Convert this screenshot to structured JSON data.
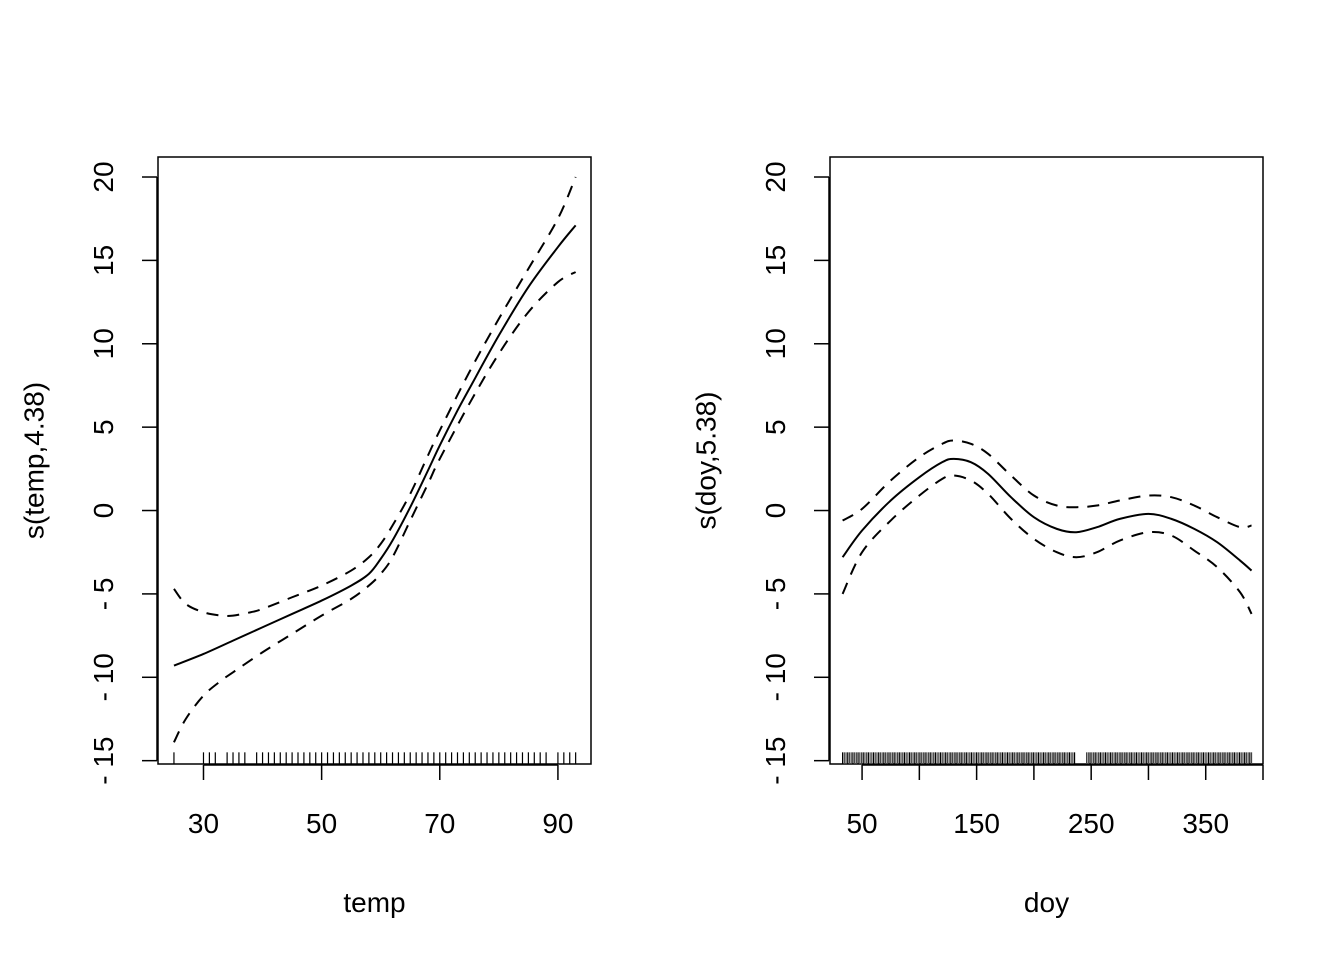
{
  "chart_data": [
    {
      "type": "line",
      "xlabel": "temp",
      "ylabel": "s(temp,4.38)",
      "xlim": [
        22.3,
        95.6
      ],
      "ylim": [
        -15.2,
        21.2
      ],
      "xticks": [
        30,
        50,
        70,
        90
      ],
      "yticks": [
        -15,
        -10,
        -5,
        0,
        5,
        10,
        15,
        20
      ],
      "grid": false,
      "series": [
        {
          "role": "fit",
          "style": "solid",
          "x": [
            25,
            30,
            35,
            40,
            45,
            50,
            55,
            58,
            60,
            62,
            65,
            68,
            70,
            73,
            75,
            80,
            85,
            90,
            93
          ],
          "values": [
            -9.3,
            -8.6,
            -7.8,
            -7.0,
            -6.2,
            -5.4,
            -4.5,
            -3.8,
            -2.9,
            -1.8,
            0.2,
            2.4,
            3.9,
            6.0,
            7.3,
            10.5,
            13.4,
            15.8,
            17.1
          ]
        },
        {
          "role": "upper",
          "style": "dashed",
          "x": [
            25,
            27,
            30,
            33,
            35,
            38,
            40,
            45,
            50,
            55,
            58,
            60,
            62,
            65,
            68,
            70,
            75,
            80,
            85,
            90,
            93
          ],
          "values": [
            -4.7,
            -5.6,
            -6.1,
            -6.3,
            -6.3,
            -6.1,
            -5.9,
            -5.2,
            -4.5,
            -3.6,
            -2.8,
            -2.0,
            -0.9,
            1.0,
            3.3,
            4.8,
            8.3,
            11.5,
            14.5,
            17.5,
            20.0
          ]
        },
        {
          "role": "lower",
          "style": "dashed",
          "x": [
            25,
            27,
            30,
            33,
            35,
            40,
            45,
            50,
            55,
            58,
            60,
            62,
            65,
            68,
            70,
            75,
            80,
            85,
            90,
            93
          ],
          "values": [
            -13.9,
            -12.5,
            -11.1,
            -10.2,
            -9.7,
            -8.5,
            -7.4,
            -6.3,
            -5.3,
            -4.5,
            -3.8,
            -2.8,
            -0.6,
            1.6,
            3.1,
            6.4,
            9.4,
            11.9,
            13.7,
            14.3
          ]
        }
      ],
      "rug": [
        25,
        30,
        31,
        32,
        34,
        35,
        36,
        37,
        39,
        40,
        41,
        42,
        43,
        44,
        45,
        46,
        47,
        48,
        49,
        50,
        51,
        52,
        53,
        54,
        55,
        56,
        57,
        58,
        59,
        60,
        61,
        62,
        63,
        64,
        65,
        66,
        67,
        68,
        69,
        70,
        71,
        72,
        73,
        74,
        75,
        76,
        77,
        78,
        79,
        80,
        81,
        82,
        83,
        84,
        85,
        86,
        87,
        88,
        90,
        91,
        92,
        93
      ]
    },
    {
      "type": "line",
      "xlabel": "doy",
      "ylabel": "s(doy,5.38)",
      "xlim": [
        22,
        400
      ],
      "ylim": [
        -15.2,
        21.2
      ],
      "xticks": [
        50,
        150,
        250,
        350
      ],
      "minor_xticks": [
        100,
        200,
        300,
        400
      ],
      "yticks": [
        -15,
        -10,
        -5,
        0,
        5,
        10,
        15,
        20
      ],
      "grid": false,
      "series": [
        {
          "role": "fit",
          "style": "solid",
          "x": [
            33,
            50,
            75,
            100,
            120,
            130,
            145,
            160,
            180,
            200,
            220,
            237,
            255,
            275,
            300,
            320,
            340,
            360,
            380,
            390
          ],
          "values": [
            -2.8,
            -1.2,
            0.6,
            2.0,
            2.9,
            3.1,
            2.9,
            2.2,
            0.8,
            -0.4,
            -1.1,
            -1.3,
            -1.0,
            -0.5,
            -0.2,
            -0.5,
            -1.1,
            -1.9,
            -3.0,
            -3.6
          ]
        },
        {
          "role": "upper",
          "style": "dashed",
          "x": [
            33,
            50,
            75,
            100,
            120,
            130,
            145,
            160,
            180,
            200,
            220,
            237,
            255,
            275,
            300,
            320,
            340,
            360,
            380,
            390
          ],
          "values": [
            -0.6,
            0.1,
            1.8,
            3.2,
            4.0,
            4.2,
            4.0,
            3.4,
            2.1,
            0.9,
            0.3,
            0.2,
            0.3,
            0.6,
            0.9,
            0.8,
            0.3,
            -0.4,
            -1.0,
            -0.9
          ]
        },
        {
          "role": "lower",
          "style": "dashed",
          "x": [
            33,
            50,
            75,
            100,
            120,
            130,
            145,
            160,
            180,
            200,
            220,
            237,
            255,
            275,
            300,
            320,
            340,
            360,
            380,
            390
          ],
          "values": [
            -5.0,
            -2.5,
            -0.6,
            0.9,
            1.9,
            2.1,
            1.8,
            1.0,
            -0.5,
            -1.7,
            -2.5,
            -2.8,
            -2.5,
            -1.8,
            -1.3,
            -1.5,
            -2.4,
            -3.4,
            -4.9,
            -6.2
          ]
        }
      ],
      "rug_range": [
        33,
        390
      ]
    }
  ]
}
